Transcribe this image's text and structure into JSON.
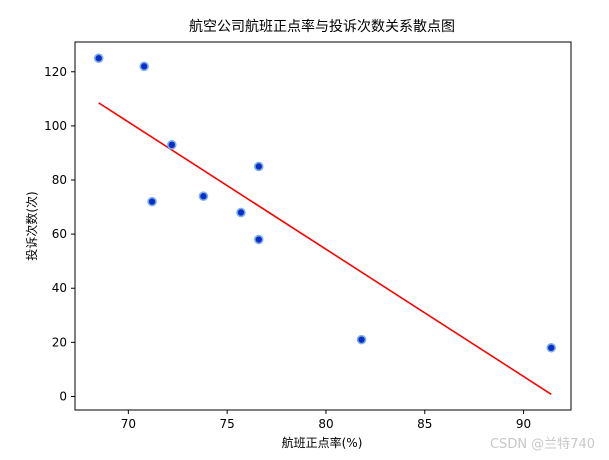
{
  "chart_data": {
    "type": "scatter",
    "title": "航空公司航班正点率与投诉次数关系散点图",
    "xlabel": "航班正点率(%)",
    "ylabel": "投诉次数(次)",
    "xlim": [
      67.3,
      92.4
    ],
    "ylim": [
      -5,
      131
    ],
    "xticks": [
      70,
      75,
      80,
      85,
      90
    ],
    "yticks": [
      0,
      20,
      40,
      60,
      80,
      100,
      120
    ],
    "grid": false,
    "points": [
      {
        "x": 68.5,
        "y": 125
      },
      {
        "x": 70.8,
        "y": 122
      },
      {
        "x": 71.2,
        "y": 72
      },
      {
        "x": 72.2,
        "y": 93
      },
      {
        "x": 73.8,
        "y": 74
      },
      {
        "x": 75.7,
        "y": 68
      },
      {
        "x": 76.6,
        "y": 58
      },
      {
        "x": 76.6,
        "y": 85
      },
      {
        "x": 81.8,
        "y": 21
      },
      {
        "x": 91.4,
        "y": 18
      }
    ],
    "regression_line": {
      "x": [
        68.5,
        91.4
      ],
      "y": [
        108.5,
        0.8
      ]
    },
    "colors": {
      "point_fill": "#0a2ecc",
      "point_edge": "#7fb2e6",
      "line": "#ff0000"
    }
  },
  "watermark": "CSDN @兰特740"
}
